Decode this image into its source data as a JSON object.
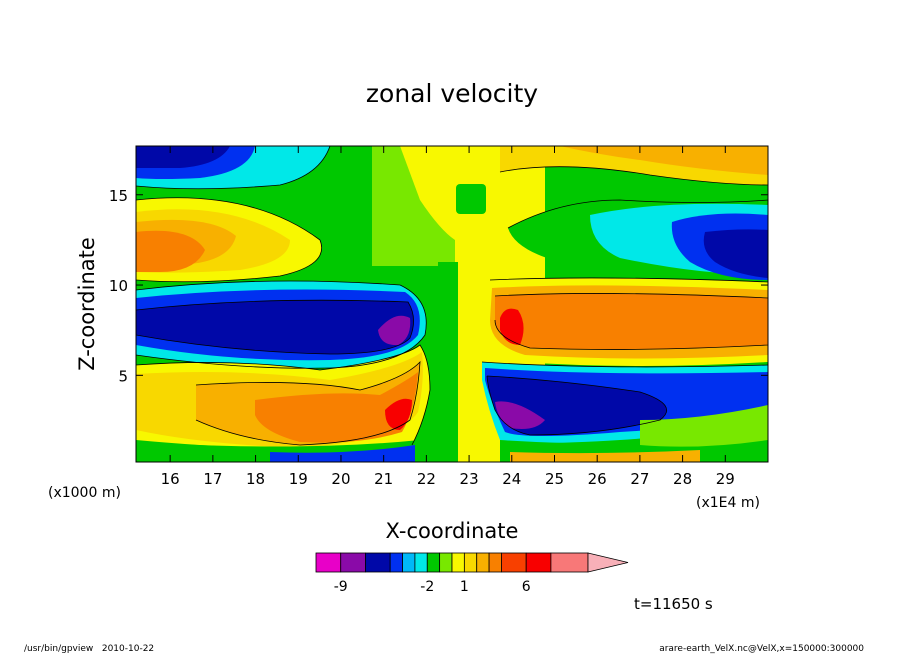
{
  "chart_data": {
    "type": "heatmap",
    "title": "zonal velocity",
    "xlabel": "X-coordinate",
    "ylabel": "Z-coordinate",
    "x_unit_note": "(x1E4 m)",
    "y_unit_note": "(x1000 m)",
    "xlim": [
      15.2,
      30.0
    ],
    "ylim": [
      0.2,
      17.7
    ],
    "x_ticks": [
      16,
      17,
      18,
      19,
      20,
      21,
      22,
      23,
      24,
      25,
      26,
      27,
      28,
      29
    ],
    "y_ticks": [
      5,
      10,
      15
    ],
    "colorbar": {
      "boundaries": [
        -11,
        -9,
        -7,
        -5,
        -4,
        -3,
        -2,
        -1,
        0,
        1,
        2,
        3,
        4,
        6,
        8,
        11
      ],
      "tick_labels": [
        "-9",
        "-2",
        "1",
        "6"
      ],
      "colors": [
        "#e800c8",
        "#8a0aa8",
        "#0008a8",
        "#0030f0",
        "#00b8f8",
        "#00e8e8",
        "#00c800",
        "#78e800",
        "#f8f800",
        "#f8d800",
        "#f8b000",
        "#f88000",
        "#f84000",
        "#f80000",
        "#f87878",
        "#f8b0b8"
      ]
    },
    "regions": [
      {
        "name": "upper-left negative core",
        "x": [
          16.0,
          21.8
        ],
        "z": [
          6.0,
          10.0
        ],
        "value": -7
      },
      {
        "name": "upper-left min core",
        "x": [
          20.8,
          21.6
        ],
        "z": [
          6.8,
          8.2
        ],
        "value": -9
      },
      {
        "name": "lower-left positive core",
        "x": [
          16.0,
          21.9
        ],
        "z": [
          1.0,
          5.0
        ],
        "value": 6
      },
      {
        "name": "lower-left max core",
        "x": [
          21.0,
          21.6
        ],
        "z": [
          2.0,
          3.5
        ],
        "value": 8
      },
      {
        "name": "upper-right positive core",
        "x": [
          23.6,
          29.9
        ],
        "z": [
          6.0,
          10.0
        ],
        "value": 6
      },
      {
        "name": "upper-right max core",
        "x": [
          23.8,
          24.3
        ],
        "z": [
          6.8,
          8.3
        ],
        "value": 8
      },
      {
        "name": "lower-right negative core",
        "x": [
          23.6,
          29.9
        ],
        "z": [
          1.0,
          5.3
        ],
        "value": -7
      },
      {
        "name": "lower-right min core",
        "x": [
          23.7,
          24.6
        ],
        "z": [
          2.0,
          3.5
        ],
        "value": -9
      },
      {
        "name": "upper-left positive lobe",
        "x": [
          15.2,
          20.0
        ],
        "z": [
          10.2,
          14.0
        ],
        "value": 4
      },
      {
        "name": "upper-right negative lobe",
        "x": [
          26.0,
          30.0
        ],
        "z": [
          10.0,
          14.0
        ],
        "value": -4
      },
      {
        "name": "top-left negative band",
        "x": [
          15.2,
          18.5
        ],
        "z": [
          15.8,
          17.7
        ],
        "value": -5
      },
      {
        "name": "top-right positive band",
        "x": [
          25.0,
          30.0
        ],
        "z": [
          15.5,
          17.7
        ],
        "value": 2
      }
    ]
  },
  "timestamp_label": "t=11650 s",
  "footer_left": "/usr/bin/gpview   2010-10-22",
  "footer_right": "arare-earth_VelX.nc@VelX,x=150000:300000"
}
